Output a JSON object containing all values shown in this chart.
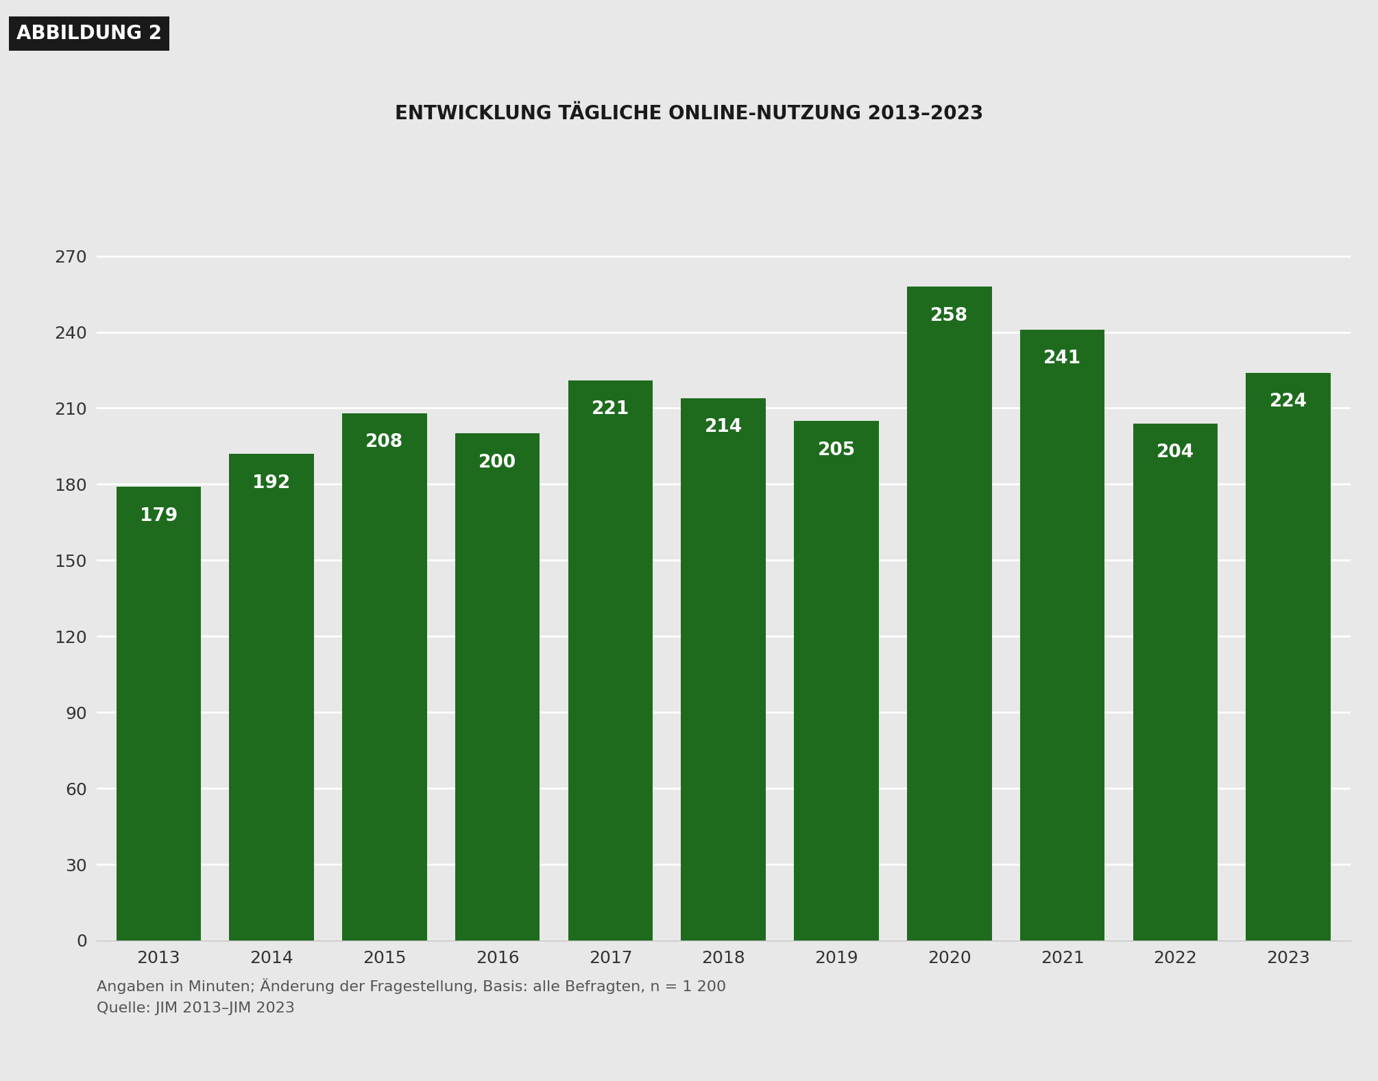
{
  "title": "ENTWICKLUNG TÄGLICHE ONLINE-NUTZUNG 2013–2023",
  "header_label": "ABBILDUNG 2",
  "categories": [
    "2013",
    "2014",
    "2015",
    "2016",
    "2017",
    "2018",
    "2019",
    "2020",
    "2021",
    "2022",
    "2023"
  ],
  "values": [
    179,
    192,
    208,
    200,
    221,
    214,
    205,
    258,
    241,
    204,
    224
  ],
  "bar_color": "#1e6b1e",
  "background_color": "#e8e8e8",
  "plot_background_color": "#e8e8e8",
  "title_fontsize": 20,
  "bar_label_fontsize": 19,
  "tick_fontsize": 18,
  "footer_fontsize": 16,
  "yticks": [
    0,
    30,
    60,
    90,
    120,
    150,
    180,
    210,
    240,
    270
  ],
  "ylim": [
    0,
    290
  ],
  "bar_width": 0.75,
  "footer_line1": "Angaben in Minuten; Änderung der Fragestellung, Basis: alle Befragten, n = 1 200",
  "footer_line2": "Quelle: JIM 2013–JIM 2023",
  "header_bg": "#1a1a1a",
  "header_fg": "#ffffff",
  "header_fontsize": 20,
  "grid_color": "#ffffff",
  "spine_color": "#bbbbbb",
  "tick_color": "#333333"
}
